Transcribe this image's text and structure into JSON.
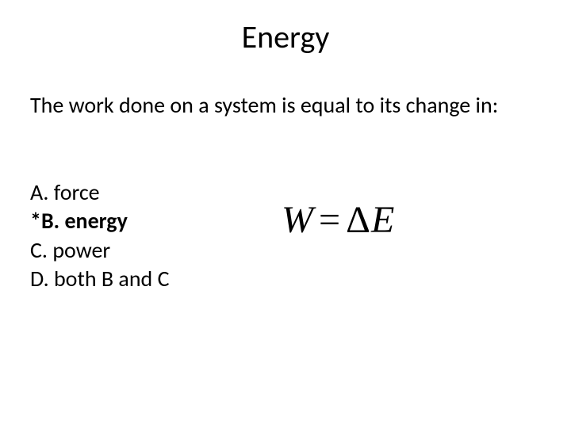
{
  "slide": {
    "title": "Energy",
    "question": "The work done on a system is equal to its change in:",
    "options": {
      "a": "A. force",
      "b": "*B. energy",
      "c": "C. power",
      "d": "D. both B and C"
    },
    "equation": {
      "lhs": "W",
      "eq": "=",
      "delta": "Δ",
      "rhs": "E"
    },
    "colors": {
      "background": "#ffffff",
      "text": "#000000"
    },
    "typography": {
      "title_fontsize": 40,
      "body_fontsize": 28,
      "equation_fontsize": 48,
      "body_font": "Calibri",
      "equation_font": "Times New Roman"
    }
  }
}
